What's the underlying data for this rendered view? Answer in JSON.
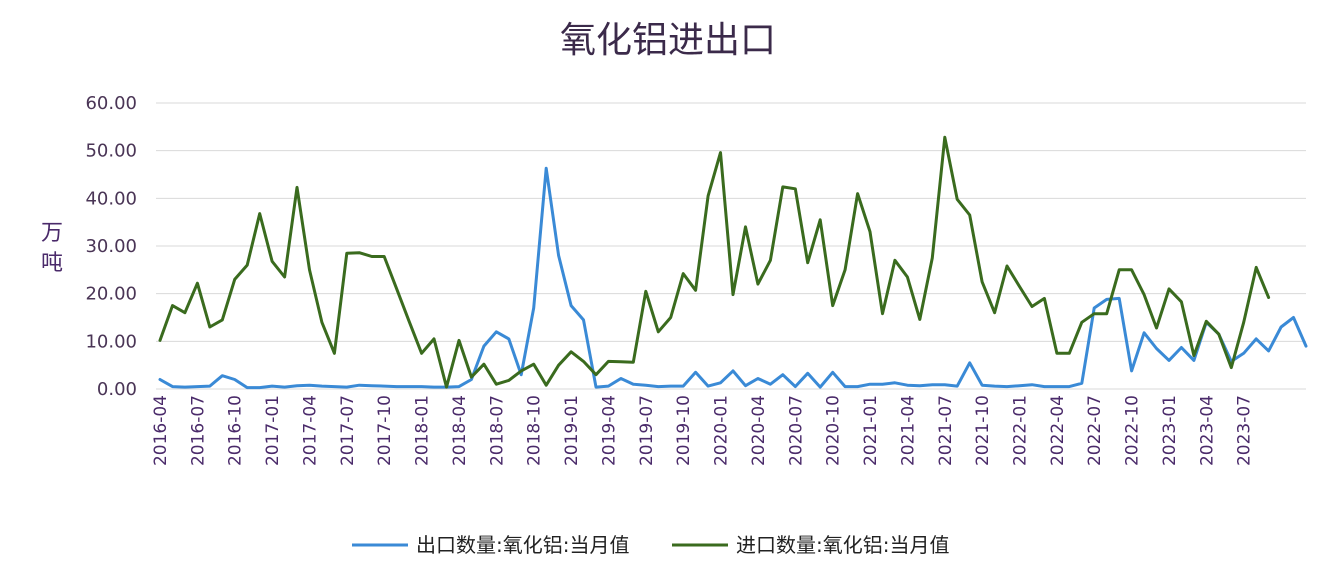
{
  "chart_data": {
    "type": "line",
    "title": "氧化铝进出口",
    "ylabel_lines": [
      "万",
      "吨"
    ],
    "ylim": [
      0,
      60
    ],
    "y_ticks": [
      "0.00",
      "10.00",
      "20.00",
      "30.00",
      "40.00",
      "50.00",
      "60.00"
    ],
    "x_tick_labels": [
      "2016-04",
      "2016-07",
      "2016-10",
      "2017-01",
      "2017-04",
      "2017-07",
      "2017-10",
      "2018-01",
      "2018-04",
      "2018-07",
      "2018-10",
      "2019-01",
      "2019-04",
      "2019-07",
      "2019-10",
      "2020-01",
      "2020-04",
      "2020-07",
      "2020-10",
      "2021-01",
      "2021-04",
      "2021-07",
      "2021-10",
      "2022-01",
      "2022-04",
      "2022-07",
      "2022-10",
      "2023-01",
      "2023-04",
      "2023-07"
    ],
    "x_start": "2016-04",
    "grid": true,
    "legend_position": "bottom",
    "series": [
      {
        "name": "出口数量:氧化铝:当月值",
        "color": "#3a8ad6",
        "values": [
          2.0,
          0.5,
          0.4,
          0.5,
          0.6,
          2.8,
          2.0,
          0.3,
          0.3,
          0.6,
          0.4,
          0.7,
          0.8,
          0.6,
          0.5,
          0.4,
          0.8,
          0.7,
          0.6,
          0.5,
          0.5,
          0.5,
          0.4,
          0.4,
          0.5,
          2.0,
          9.0,
          12.0,
          10.5,
          3.0,
          17.0,
          46.3,
          28.0,
          17.5,
          14.5,
          0.4,
          0.6,
          2.2,
          1.0,
          0.8,
          0.5,
          0.6,
          0.6,
          3.5,
          0.6,
          1.3,
          3.8,
          0.7,
          2.2,
          1.0,
          3.0,
          0.5,
          3.3,
          0.4,
          3.5,
          0.5,
          0.5,
          1.0,
          1.0,
          1.3,
          0.8,
          0.7,
          0.9,
          0.9,
          0.6,
          5.5,
          0.8,
          0.6,
          0.5,
          0.7,
          0.9,
          0.5,
          0.5,
          0.5,
          1.2,
          17.0,
          18.8,
          19.0,
          3.8,
          11.8,
          8.5,
          6.0,
          8.7,
          6.0,
          14.0,
          11.5,
          5.8,
          7.5,
          10.5,
          8.0,
          13.0,
          15.0,
          9.0
        ]
      },
      {
        "name": "进口数量:氧化铝:当月值",
        "color": "#3a6b1e",
        "values": [
          10.2,
          17.5,
          16.0,
          22.2,
          13.0,
          14.5,
          23.0,
          26.0,
          36.8,
          26.8,
          23.5,
          42.3,
          25.0,
          14.0,
          7.5,
          28.5,
          28.6,
          27.8,
          27.8,
          21.0,
          14.2,
          7.5,
          10.5,
          0.4,
          10.2,
          2.5,
          5.2,
          1.0,
          1.8,
          3.8,
          5.2,
          0.8,
          5.0,
          7.8,
          5.8,
          3.0,
          5.8,
          5.7,
          5.6,
          20.5,
          12.0,
          15.0,
          24.2,
          20.7,
          40.5,
          49.6,
          19.8,
          34.0,
          22.0,
          27.0,
          42.4,
          42.0,
          26.5,
          35.5,
          17.5,
          25.0,
          41.0,
          33.0,
          15.8,
          27.0,
          23.5,
          14.6,
          27.5,
          52.8,
          39.8,
          36.5,
          22.5,
          16.0,
          25.8,
          21.5,
          17.3,
          19.0,
          7.5,
          7.5,
          14.0,
          15.8,
          15.8,
          25.0,
          25.0,
          19.8,
          12.8,
          21.0,
          18.3,
          7.0,
          14.2,
          11.5,
          4.5,
          14.0,
          25.5,
          19.2
        ]
      }
    ]
  }
}
